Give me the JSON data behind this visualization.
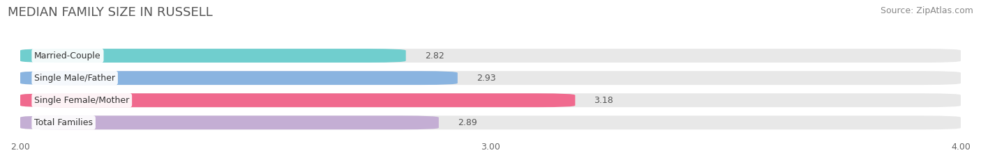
{
  "title": "MEDIAN FAMILY SIZE IN RUSSELL",
  "source": "Source: ZipAtlas.com",
  "categories": [
    "Married-Couple",
    "Single Male/Father",
    "Single Female/Mother",
    "Total Families"
  ],
  "values": [
    2.82,
    2.93,
    3.18,
    2.89
  ],
  "bar_colors": [
    "#70cece",
    "#8ab4e0",
    "#f06a8e",
    "#c4aed4"
  ],
  "bar_bg_color": "#e8e8e8",
  "xlim": [
    2.0,
    4.0
  ],
  "xticks": [
    2.0,
    3.0,
    4.0
  ],
  "xtick_labels": [
    "2.00",
    "3.00",
    "4.00"
  ],
  "figsize": [
    14.06,
    2.33
  ],
  "dpi": 100,
  "title_fontsize": 13,
  "label_fontsize": 9,
  "value_fontsize": 9,
  "tick_fontsize": 9,
  "source_fontsize": 9
}
